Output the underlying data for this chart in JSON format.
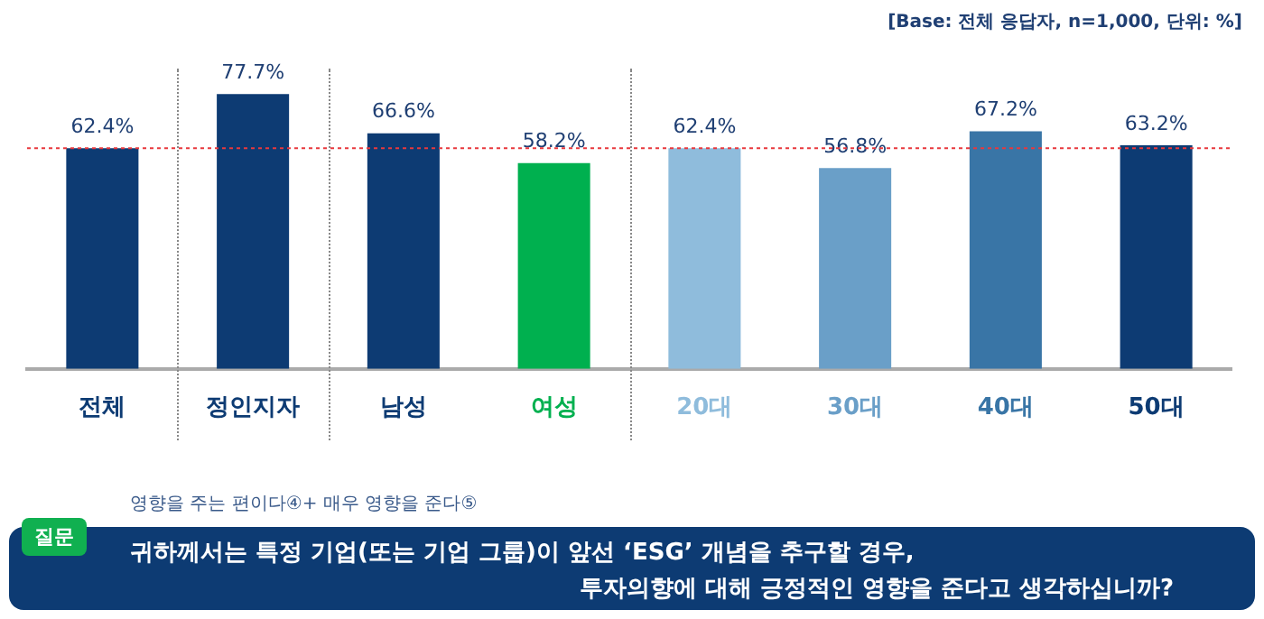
{
  "chart_data": {
    "type": "bar",
    "categories": [
      "전체",
      "정인지자",
      "남성",
      "여성",
      "20대",
      "30대",
      "40대",
      "50대"
    ],
    "values": [
      62.4,
      77.7,
      66.6,
      58.2,
      62.4,
      56.8,
      67.2,
      63.2
    ],
    "colors": [
      "#0d3b73",
      "#0d3b73",
      "#0d3b73",
      "#00b04f",
      "#8fbcdc",
      "#6a9fc8",
      "#3975a6",
      "#0d3b73"
    ],
    "value_labels": [
      "62.4%",
      "77.7%",
      "66.6%",
      "58.2%",
      "62.4%",
      "56.8%",
      "67.2%",
      "63.2%"
    ],
    "ref_lines": [
      {
        "axis": "y",
        "value": 62.4,
        "color": "#e8383d",
        "line_style": "dotted"
      }
    ],
    "tick_labels": "x",
    "grid": false,
    "legend": false,
    "annotations": [
      "[Base: 전체 응답자, n=1,000, 단위: %]",
      "영향을 주는 편이다④+ 매우 영향을 준다⑤",
      "질문",
      "귀하께서는 특정 기업(또는 기업 그룹)이 앞선 ‘ESG’ 개념을 추구할 경우,",
      "투자의향에 대해 긍정적인 영향을 준다고 생각하십니까?"
    ]
  }
}
